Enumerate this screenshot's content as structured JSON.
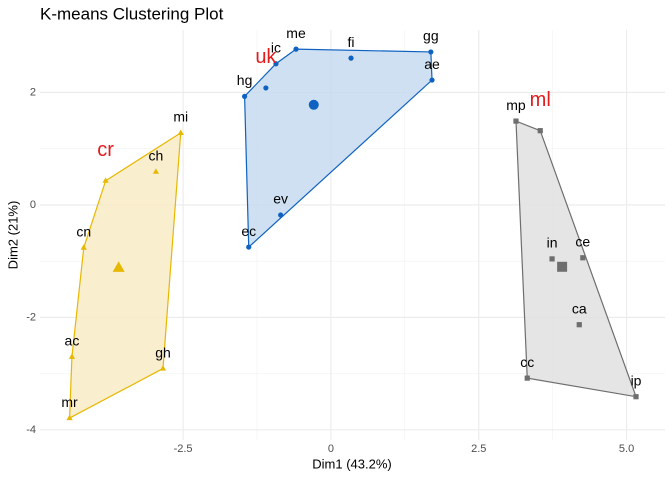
{
  "chart_data": {
    "type": "cluster",
    "title": "K-means Clustering Plot",
    "x_label": "Dim1 (43.2%)",
    "y_label": "Dim2 (21%)",
    "xlim": [
      -4.92,
      5.65
    ],
    "ylim": [
      -4.18,
      3.11
    ],
    "xticks": [
      -2.5,
      0,
      2.5,
      {
        "value": 5,
        "label": "5.0"
      }
    ],
    "yticks": [
      -4,
      -2,
      0,
      2
    ],
    "grid": true,
    "series": [
      {
        "color": "#0f62c1",
        "fill": "#c6dbef",
        "marker": "circle",
        "labels": [
          "hg",
          "ic",
          "me",
          "fi",
          "gg",
          "ae",
          "uk",
          "ev",
          "ec"
        ],
        "x": [
          -1.46,
          -0.93,
          -0.59,
          0.34,
          1.69,
          1.71,
          -1.1,
          -0.85,
          -1.39
        ],
        "values": [
          1.93,
          2.51,
          2.77,
          2.61,
          2.72,
          2.22,
          2.08,
          -0.18,
          -0.75
        ],
        "label_colors": [
          "#000000",
          "#000000",
          "#000000",
          "#000000",
          "#000000",
          "#000000",
          "#e41a1c",
          "#000000",
          "#000000"
        ],
        "center": {
          "x": -0.29,
          "y": 1.78
        }
      },
      {
        "color": "#e7b800",
        "fill": "#f8ebc6",
        "marker": "triangle",
        "labels": [
          "mi",
          "ch",
          "cr",
          "cn",
          "ac",
          "mr",
          "gh"
        ],
        "x": [
          -2.54,
          -2.96,
          -3.81,
          -4.18,
          -4.38,
          -4.42,
          -2.84
        ],
        "values": [
          1.28,
          0.59,
          0.43,
          -0.76,
          -2.7,
          -3.79,
          -2.91
        ],
        "label_colors": [
          "#000000",
          "#000000",
          "#e41a1c",
          "#000000",
          "#000000",
          "#000000",
          "#000000"
        ],
        "center": {
          "x": -3.59,
          "y": -1.12
        }
      },
      {
        "color": "#6e6e6e",
        "fill": "#e0e0e0",
        "marker": "square",
        "labels": [
          "mp",
          "ml",
          "in",
          "ce",
          "ca",
          "cc",
          "ip"
        ],
        "x": [
          3.13,
          3.54,
          3.74,
          4.26,
          4.2,
          3.32,
          5.16
        ],
        "values": [
          1.49,
          1.32,
          -0.96,
          -0.94,
          -2.13,
          -3.08,
          -3.41
        ],
        "label_colors": [
          "#000000",
          "#e41a1c",
          "#000000",
          "#000000",
          "#000000",
          "#000000",
          "#000000"
        ],
        "center": {
          "x": 3.91,
          "y": -1.1
        }
      }
    ]
  }
}
